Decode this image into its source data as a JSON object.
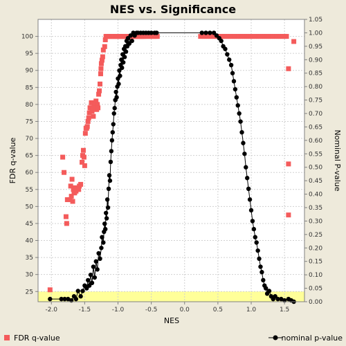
{
  "chart_data": {
    "type": "scatter",
    "title": "NES vs. Significance",
    "xlabel": "NES",
    "ylabel_left": "FDR q-value",
    "ylabel_right": "Nominal P-value",
    "xlim": [
      -2.2,
      1.8
    ],
    "ylim_left": [
      22,
      105
    ],
    "ylim_right": [
      0,
      1.05
    ],
    "x_ticks": [
      -2.0,
      -1.5,
      -1.0,
      -0.5,
      0.0,
      0.5,
      1.0,
      1.5
    ],
    "x_tick_labels": [
      "-2.0",
      "-1.5",
      "-1.0",
      "-0.5",
      "0.0",
      "0.5",
      "1.0",
      "1.5"
    ],
    "y_left_ticks": [
      25,
      30,
      35,
      40,
      45,
      50,
      55,
      60,
      65,
      70,
      75,
      80,
      85,
      90,
      95,
      100
    ],
    "y_left_tick_labels": [
      "25",
      "30",
      "35",
      "40",
      "45",
      "50",
      "55",
      "60",
      "65",
      "70",
      "75",
      "80",
      "85",
      "90",
      "95",
      "100"
    ],
    "y_right_ticks": [
      0,
      0.05,
      0.1,
      0.15,
      0.2,
      0.25,
      0.3,
      0.35,
      0.4,
      0.45,
      0.5,
      0.55,
      0.6,
      0.65,
      0.7,
      0.75,
      0.8,
      0.85,
      0.9,
      0.95,
      1.0,
      1.05
    ],
    "y_right_tick_labels": [
      "0.00",
      "0.05",
      "0.10",
      "0.15",
      "0.20",
      "0.25",
      "0.30",
      "0.35",
      "0.40",
      "0.45",
      "0.50",
      "0.55",
      "0.60",
      "0.65",
      "0.70",
      "0.75",
      "0.80",
      "0.85",
      "0.90",
      "0.95",
      "1.00",
      "1.05"
    ],
    "highlight_band_left": [
      22,
      25
    ],
    "grid": true,
    "legend_position": "bottom",
    "colors": {
      "fdr": "#f45b5b",
      "nominal": "#000000",
      "highlight": "#ffff99",
      "grid": "#d0d0d0",
      "plot_bg": "#ffffff"
    },
    "series": [
      {
        "name": "FDR q-value",
        "axis": "left",
        "marker": "square",
        "points": [
          [
            -2.02,
            25.5
          ],
          [
            -1.83,
            64.5
          ],
          [
            -1.81,
            60
          ],
          [
            -1.78,
            47
          ],
          [
            -1.77,
            45
          ],
          [
            -1.76,
            52
          ],
          [
            -1.72,
            52
          ],
          [
            -1.71,
            56
          ],
          [
            -1.7,
            53
          ],
          [
            -1.69,
            58
          ],
          [
            -1.68,
            51.5
          ],
          [
            -1.67,
            55
          ],
          [
            -1.66,
            54
          ],
          [
            -1.65,
            54
          ],
          [
            -1.64,
            55.5
          ],
          [
            -1.63,
            54.5
          ],
          [
            -1.61,
            55
          ],
          [
            -1.59,
            55
          ],
          [
            -1.58,
            56
          ],
          [
            -1.56,
            56.5
          ],
          [
            -1.54,
            63
          ],
          [
            -1.53,
            65
          ],
          [
            -1.52,
            66.5
          ],
          [
            -1.51,
            64.5
          ],
          [
            -1.5,
            62
          ],
          [
            -1.49,
            71.5
          ],
          [
            -1.48,
            73
          ],
          [
            -1.47,
            73
          ],
          [
            -1.46,
            73.5
          ],
          [
            -1.45,
            75
          ],
          [
            -1.44,
            76
          ],
          [
            -1.43,
            77.5
          ],
          [
            -1.42,
            79
          ],
          [
            -1.41,
            79
          ],
          [
            -1.4,
            80.5
          ],
          [
            -1.39,
            78
          ],
          [
            -1.38,
            79
          ],
          [
            -1.37,
            76.5
          ],
          [
            -1.36,
            80
          ],
          [
            -1.35,
            80.5
          ],
          [
            -1.34,
            79
          ],
          [
            -1.33,
            81
          ],
          [
            -1.32,
            78.5
          ],
          [
            -1.31,
            80
          ],
          [
            -1.3,
            79
          ],
          [
            -1.29,
            83
          ],
          [
            -1.28,
            84
          ],
          [
            -1.27,
            86
          ],
          [
            -1.26,
            89
          ],
          [
            -1.255,
            90.5
          ],
          [
            -1.25,
            92
          ],
          [
            -1.24,
            93
          ],
          [
            -1.23,
            94
          ],
          [
            -1.22,
            96
          ],
          [
            -1.2,
            97
          ],
          [
            -1.19,
            99
          ],
          [
            -1.18,
            100
          ],
          [
            -1.17,
            100
          ],
          [
            -1.16,
            100
          ],
          [
            -1.15,
            100
          ],
          [
            -1.14,
            100
          ],
          [
            -1.13,
            100
          ],
          [
            -1.12,
            100
          ],
          [
            -1.11,
            100
          ],
          [
            -1.1,
            100
          ],
          [
            -1.09,
            100
          ],
          [
            -1.08,
            100
          ],
          [
            -1.07,
            100
          ],
          [
            -1.06,
            100
          ],
          [
            -1.05,
            100
          ],
          [
            -1.04,
            100
          ],
          [
            -1.03,
            100
          ],
          [
            -1.02,
            100
          ],
          [
            -1.01,
            100
          ],
          [
            -1.0,
            100
          ],
          [
            -0.99,
            100
          ],
          [
            -0.98,
            100
          ],
          [
            -0.97,
            100
          ],
          [
            -0.96,
            100
          ],
          [
            -0.95,
            100
          ],
          [
            -0.94,
            100
          ],
          [
            -0.93,
            100
          ],
          [
            -0.92,
            100
          ],
          [
            -0.91,
            100
          ],
          [
            -0.9,
            100
          ],
          [
            -0.89,
            100
          ],
          [
            -0.88,
            100
          ],
          [
            -0.87,
            100
          ],
          [
            -0.86,
            100
          ],
          [
            -0.85,
            100
          ],
          [
            -0.84,
            100
          ],
          [
            -0.83,
            100
          ],
          [
            -0.82,
            100
          ],
          [
            -0.81,
            100
          ],
          [
            -0.8,
            100
          ],
          [
            -0.79,
            100
          ],
          [
            -0.78,
            100
          ],
          [
            -0.77,
            100
          ],
          [
            -0.76,
            100
          ],
          [
            -0.75,
            100
          ],
          [
            -0.74,
            100
          ],
          [
            -0.73,
            100
          ],
          [
            -0.72,
            100
          ],
          [
            -0.71,
            100
          ],
          [
            -0.7,
            100
          ],
          [
            -0.69,
            100
          ],
          [
            -0.68,
            100
          ],
          [
            -0.67,
            100
          ],
          [
            -0.66,
            100
          ],
          [
            -0.65,
            100
          ],
          [
            -0.64,
            100
          ],
          [
            -0.63,
            100
          ],
          [
            -0.62,
            100
          ],
          [
            -0.61,
            100
          ],
          [
            -0.6,
            100
          ],
          [
            -0.58,
            100
          ],
          [
            -0.56,
            100
          ],
          [
            -0.54,
            100
          ],
          [
            -0.52,
            100
          ],
          [
            -0.5,
            100
          ],
          [
            -0.48,
            100
          ],
          [
            -0.46,
            100
          ],
          [
            -0.44,
            100
          ],
          [
            -0.42,
            100
          ],
          [
            -0.41,
            100
          ],
          [
            0.24,
            100
          ],
          [
            0.27,
            100
          ],
          [
            0.3,
            100
          ],
          [
            0.33,
            100
          ],
          [
            0.36,
            100
          ],
          [
            0.39,
            100
          ],
          [
            0.42,
            100
          ],
          [
            0.45,
            100
          ],
          [
            0.48,
            100
          ],
          [
            0.51,
            100
          ],
          [
            0.54,
            100
          ],
          [
            0.57,
            100
          ],
          [
            0.6,
            100
          ],
          [
            0.63,
            100
          ],
          [
            0.66,
            100
          ],
          [
            0.69,
            100
          ],
          [
            0.72,
            100
          ],
          [
            0.75,
            100
          ],
          [
            0.78,
            100
          ],
          [
            0.81,
            100
          ],
          [
            0.84,
            100
          ],
          [
            0.87,
            100
          ],
          [
            0.9,
            100
          ],
          [
            0.93,
            100
          ],
          [
            0.96,
            100
          ],
          [
            0.99,
            100
          ],
          [
            1.02,
            100
          ],
          [
            1.05,
            100
          ],
          [
            1.08,
            100
          ],
          [
            1.11,
            100
          ],
          [
            1.14,
            100
          ],
          [
            1.17,
            100
          ],
          [
            1.2,
            100
          ],
          [
            1.23,
            100
          ],
          [
            1.26,
            100
          ],
          [
            1.29,
            100
          ],
          [
            1.32,
            100
          ],
          [
            1.35,
            100
          ],
          [
            1.38,
            100
          ],
          [
            1.41,
            100
          ],
          [
            1.44,
            100
          ],
          [
            1.47,
            100
          ],
          [
            1.5,
            100
          ],
          [
            1.53,
            100
          ],
          [
            1.56,
            47.5
          ],
          [
            1.56,
            62.5
          ],
          [
            1.56,
            90.5
          ],
          [
            1.64,
            98.5
          ]
        ]
      },
      {
        "name": "nominal p-value",
        "axis": "right",
        "marker": "circle",
        "points": [
          [
            -2.02,
            0.01
          ],
          [
            -1.85,
            0.01
          ],
          [
            -1.8,
            0.01
          ],
          [
            -1.75,
            0.01
          ],
          [
            -1.7,
            0.005
          ],
          [
            -1.66,
            0.02
          ],
          [
            -1.63,
            0.01
          ],
          [
            -1.6,
            0.04
          ],
          [
            -1.56,
            0.02
          ],
          [
            -1.53,
            0.04
          ],
          [
            -1.5,
            0.06
          ],
          [
            -1.47,
            0.05
          ],
          [
            -1.45,
            0.08
          ],
          [
            -1.43,
            0.06
          ],
          [
            -1.41,
            0.1
          ],
          [
            -1.39,
            0.07
          ],
          [
            -1.37,
            0.13
          ],
          [
            -1.35,
            0.09
          ],
          [
            -1.33,
            0.15
          ],
          [
            -1.31,
            0.12
          ],
          [
            -1.29,
            0.18
          ],
          [
            -1.27,
            0.16
          ],
          [
            -1.25,
            0.2
          ],
          [
            -1.24,
            0.24
          ],
          [
            -1.22,
            0.22
          ],
          [
            -1.21,
            0.26
          ],
          [
            -1.2,
            0.29
          ],
          [
            -1.19,
            0.27
          ],
          [
            -1.18,
            0.33
          ],
          [
            -1.17,
            0.31
          ],
          [
            -1.16,
            0.38
          ],
          [
            -1.15,
            0.35
          ],
          [
            -1.14,
            0.42
          ],
          [
            -1.13,
            0.47
          ],
          [
            -1.12,
            0.45
          ],
          [
            -1.11,
            0.52
          ],
          [
            -1.1,
            0.56
          ],
          [
            -1.09,
            0.6
          ],
          [
            -1.08,
            0.63
          ],
          [
            -1.07,
            0.66
          ],
          [
            -1.06,
            0.7
          ],
          [
            -1.05,
            0.72
          ],
          [
            -1.04,
            0.75
          ],
          [
            -1.03,
            0.78
          ],
          [
            -1.02,
            0.76
          ],
          [
            -1.01,
            0.8
          ],
          [
            -1.0,
            0.83
          ],
          [
            -0.99,
            0.81
          ],
          [
            -0.98,
            0.86
          ],
          [
            -0.97,
            0.84
          ],
          [
            -0.96,
            0.88
          ],
          [
            -0.95,
            0.9
          ],
          [
            -0.94,
            0.87
          ],
          [
            -0.93,
            0.92
          ],
          [
            -0.92,
            0.89
          ],
          [
            -0.91,
            0.94
          ],
          [
            -0.9,
            0.91
          ],
          [
            -0.89,
            0.95
          ],
          [
            -0.88,
            0.93
          ],
          [
            -0.87,
            0.97
          ],
          [
            -0.86,
            0.95
          ],
          [
            -0.85,
            0.98
          ],
          [
            -0.83,
            0.96
          ],
          [
            -0.81,
            0.99
          ],
          [
            -0.79,
            0.97
          ],
          [
            -0.77,
            1.0
          ],
          [
            -0.75,
            0.99
          ],
          [
            -0.72,
            1.0
          ],
          [
            -0.7,
            1.0
          ],
          [
            -0.66,
            1.0
          ],
          [
            -0.62,
            1.0
          ],
          [
            -0.58,
            1.0
          ],
          [
            -0.54,
            1.0
          ],
          [
            -0.5,
            1.0
          ],
          [
            -0.45,
            1.0
          ],
          [
            -0.42,
            1.0
          ],
          [
            0.26,
            1.0
          ],
          [
            0.32,
            1.0
          ],
          [
            0.38,
            1.0
          ],
          [
            0.44,
            1.0
          ],
          [
            0.48,
            0.99
          ],
          [
            0.52,
            0.98
          ],
          [
            0.55,
            0.97
          ],
          [
            0.58,
            0.95
          ],
          [
            0.61,
            0.94
          ],
          [
            0.64,
            0.92
          ],
          [
            0.67,
            0.9
          ],
          [
            0.7,
            0.88
          ],
          [
            0.72,
            0.85
          ],
          [
            0.74,
            0.82
          ],
          [
            0.76,
            0.79
          ],
          [
            0.78,
            0.76
          ],
          [
            0.8,
            0.73
          ],
          [
            0.82,
            0.7
          ],
          [
            0.84,
            0.67
          ],
          [
            0.86,
            0.63
          ],
          [
            0.88,
            0.59
          ],
          [
            0.9,
            0.55
          ],
          [
            0.92,
            0.5
          ],
          [
            0.94,
            0.46
          ],
          [
            0.96,
            0.42
          ],
          [
            0.98,
            0.38
          ],
          [
            1.0,
            0.34
          ],
          [
            1.02,
            0.3
          ],
          [
            1.04,
            0.27
          ],
          [
            1.06,
            0.24
          ],
          [
            1.08,
            0.22
          ],
          [
            1.1,
            0.19
          ],
          [
            1.12,
            0.16
          ],
          [
            1.14,
            0.13
          ],
          [
            1.16,
            0.11
          ],
          [
            1.18,
            0.08
          ],
          [
            1.2,
            0.06
          ],
          [
            1.22,
            0.05
          ],
          [
            1.24,
            0.03
          ],
          [
            1.27,
            0.04
          ],
          [
            1.3,
            0.02
          ],
          [
            1.33,
            0.01
          ],
          [
            1.36,
            0.02
          ],
          [
            1.4,
            0.01
          ],
          [
            1.45,
            0.01
          ],
          [
            1.5,
            0.005
          ],
          [
            1.56,
            0.01
          ],
          [
            1.6,
            0.005
          ],
          [
            1.64,
            0.0
          ]
        ]
      }
    ]
  }
}
